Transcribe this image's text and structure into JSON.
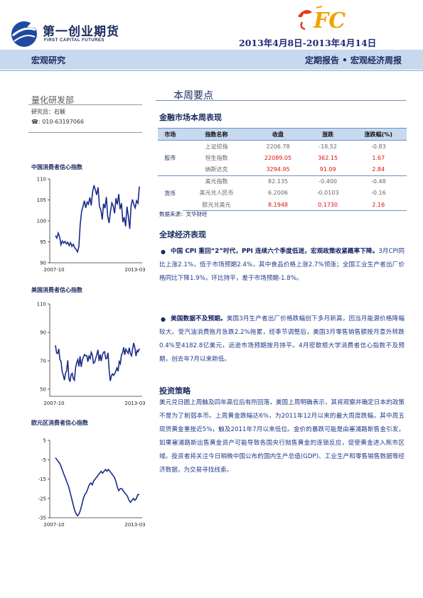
{
  "header": {
    "company_cn": "第一创业期货",
    "company_en": "FIRST CAPITAL FUTURES",
    "logo_mark_text": "FC",
    "date_range": "2013年4月8日-2013年4月14日",
    "section": "宏观研究",
    "report_type": "定期报告 • 宏观经济周报"
  },
  "sidebar": {
    "department": "量化研发部",
    "analyst": "研究员：石颖",
    "phone": "☎: 010-63197066",
    "charts": [
      {
        "title": "中国消费者信心指数",
        "chart_data": {
          "type": "line",
          "yticks": [
            90,
            95,
            100,
            105,
            110
          ],
          "ylim": [
            90,
            110
          ],
          "xticks": [
            "2007-10",
            "2013-03"
          ],
          "values": [
            96.5,
            95.9,
            97.1,
            96.2,
            94.3,
            95.2,
            94.7,
            95.1,
            94.5,
            94.9,
            94.1,
            94.8,
            93.9,
            94.4,
            93.6,
            93.2,
            92.6,
            93.8,
            99.1,
            102.3,
            103.4,
            104.8,
            103.1,
            104.5,
            104.0,
            105.6,
            103.7,
            106.8,
            108.5,
            107.4,
            106.2,
            108.0,
            103.4,
            102.7,
            100.3,
            104.1,
            103.0,
            105.7,
            101.1,
            99.5,
            102.2,
            104.3,
            103.6,
            101.8,
            105.4,
            103.9,
            106.4,
            102.8,
            104.2,
            99.7,
            100.9,
            98.7,
            103.4,
            101.2,
            98.1,
            103.6,
            105.1,
            103.9,
            103.1,
            104.8,
            104.2,
            108.2
          ]
        }
      },
      {
        "title": "美国消费者信心指数",
        "chart_data": {
          "type": "line",
          "yticks": [
            50,
            70,
            90,
            110
          ],
          "ylim": [
            45,
            110
          ],
          "xticks": [
            "2007-10",
            "2013-03"
          ],
          "values": [
            80.9,
            75.5,
            75.1,
            78.4,
            70.8,
            69.5,
            62.6,
            59.8,
            56.4,
            61.2,
            63.2,
            70.3,
            57.6,
            55.3,
            60.1,
            61.2,
            57.3,
            56.3,
            65.1,
            68.7,
            70.8,
            66.0,
            73.2,
            65.7,
            70.5,
            72.5,
            74.4,
            73.6,
            73.6,
            69.3,
            73.3,
            71.6,
            76.0,
            74.2,
            68.2,
            68.9,
            71.6,
            74.4,
            77.7,
            69.8,
            74.5,
            69.8,
            74.3,
            76.0,
            76.4,
            71.5,
            71.8,
            75.7,
            63.7,
            55.8,
            59.5,
            60.8,
            59.7,
            60.9,
            62.8,
            65.0,
            62.6,
            69.5,
            67.9,
            74.0,
            75.7,
            79.5,
            74.2,
            78.2,
            76.6,
            75.3,
            79.2,
            75.1,
            73.5,
            78.6,
            82.6,
            79.3,
            73.3,
            77.2,
            76.4,
            78.6
          ]
        }
      },
      {
        "title": "欧元区消费者信心指数",
        "chart_data": {
          "type": "line",
          "yticks": [
            5,
            -5,
            -15,
            -25,
            -35
          ],
          "ylim": [
            -35,
            5
          ],
          "xticks": [
            "2007-10",
            "2013-03"
          ],
          "values": [
            -4,
            -5,
            -6,
            -7,
            -9,
            -11,
            -13,
            -15,
            -17,
            -19,
            -22,
            -25,
            -28,
            -31,
            -33,
            -34,
            -33,
            -31,
            -28,
            -25,
            -23,
            -22,
            -20,
            -18,
            -17,
            -18,
            -16,
            -15,
            -14,
            -13,
            -12,
            -11,
            -12,
            -11,
            -10,
            -11,
            -10,
            -11,
            -12,
            -13,
            -14,
            -16,
            -19,
            -21,
            -20,
            -20,
            -21,
            -22,
            -23,
            -24,
            -26,
            -27,
            -26,
            -25,
            -26,
            -25,
            -23,
            -23
          ]
        }
      }
    ]
  },
  "main": {
    "summary_title": "本周要点",
    "market_section": "金融市场本周表现",
    "table": {
      "headers": [
        "市场",
        "指数名称",
        "收盘",
        "涨跌",
        "涨跌幅(%)"
      ],
      "groups": [
        {
          "market": "股市",
          "rows": [
            {
              "name": "上证综指",
              "close": "2206.78",
              "change": "-18.52",
              "pct": "-0.83",
              "red": false
            },
            {
              "name": "恒生指数",
              "close": "22089.05",
              "change": "362.15",
              "pct": "1.67",
              "red": true
            },
            {
              "name": "纳斯达克",
              "close": "3294.95",
              "change": "91.09",
              "pct": "2.84",
              "red": true
            }
          ]
        },
        {
          "market": "货币",
          "rows": [
            {
              "name": "美元指数",
              "close": "82.135",
              "change": "-0.400",
              "pct": "-0.48",
              "red": false
            },
            {
              "name": "美元兑人民币",
              "close": "6.2006",
              "change": "-0.0103",
              "pct": "-0.16",
              "red": false
            },
            {
              "name": "欧元兑美元",
              "close": "8.1948",
              "change": "0.1730",
              "pct": "2.16",
              "red": true
            }
          ]
        }
      ],
      "source": "数据来源：文华财经"
    },
    "global_section": "全球经济表现",
    "bullet1_bold": "中国 CPI 重回“2”时代，PPI 连续六个季度低迷，宏观政策收紧概率下降。",
    "bullet1_text": "3月CPI同比上涨2.1%，低于市场预期2.4%，其中食品价格上涨2.7%领涨；全国工业生产者出厂价格同比下降1.9%，环比持平，差于市场预期-1.8%。",
    "bullet2_bold": "美国数据不及预期。",
    "bullet2_text": "美国3月生产者出厂价格跌幅创下多月新高，因当月能源价格降幅较大。受汽油消费拖月急跌2.2%拖累，经季节调整后，美国3月零售销售额按月意外转跌0.4%至4182.8亿美元，远逊市场预期按月持平。4月密歇根大学消费者信心指数不及预期，创去年7月以来新低。",
    "strategy_section": "投资策略",
    "strategy_text": "美元兑日圆上周触及四年高位后有所回落，美国上周明确表示，其将观察并确定日本的政策不是为了削弱本币。上周黄金跌幅达6%，为2011年12月以来的最大周度跌幅，其中周五现货黄金重挫近5%，触及2011年7月以来低位。金价的暴跌可能是由塞浦路斯售金引发，如果塞浦路斯出售黄金资产可能导致各国央行抛售黄金的连锁反应，促使黄金进入熊市区域。投资者将关注今日稍晚中国公布的国内生产总值(GDP)、工业生产和零售销售数据等经济数据，为交易寻找线索。"
  }
}
